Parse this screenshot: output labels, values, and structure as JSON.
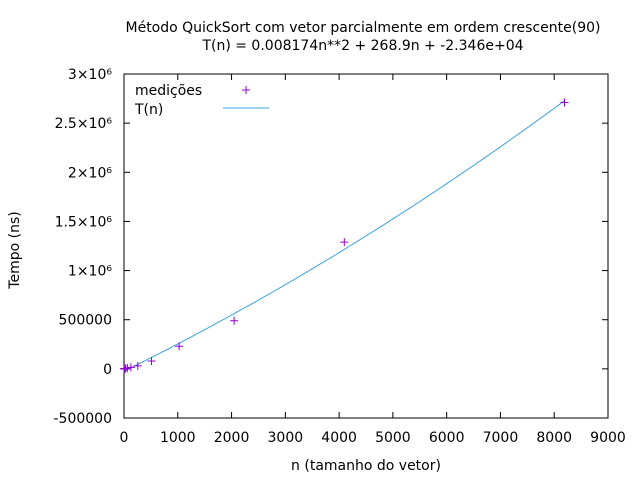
{
  "chart_data": {
    "type": "scatter",
    "title": "Método QuickSort com vetor parcialmente em ordem crescente(90)",
    "subtitle": "T(n) = 0.008174n**2 + 268.9n + -2.346e+04",
    "xlabel": "n (tamanho do vetor)",
    "ylabel": "Tempo (ns)",
    "xlim": [
      0,
      9000
    ],
    "ylim": [
      -500000,
      3000000
    ],
    "x_ticks": [
      "0",
      "1000",
      "2000",
      "3000",
      "4000",
      "5000",
      "6000",
      "7000",
      "8000",
      "9000"
    ],
    "y_ticks": [
      "-500000",
      "0",
      "500000",
      "1×10⁶",
      "1.5×10⁶",
      "2×10⁶",
      "2.5×10⁶",
      "3×10⁶"
    ],
    "grid": false,
    "legend_position": "top-left",
    "series": [
      {
        "name": "medições",
        "kind": "points",
        "marker": "+",
        "color": "#9400d3",
        "x": [
          2,
          4,
          8,
          16,
          32,
          64,
          128,
          256,
          512,
          1024,
          2048,
          4096,
          8192
        ],
        "y": [
          500,
          800,
          1500,
          3000,
          5000,
          8000,
          15000,
          30000,
          80000,
          230000,
          490000,
          1290000,
          2710000
        ]
      },
      {
        "name": "T(n)",
        "kind": "fit_line",
        "color": "#3ba3e6",
        "coefficients": {
          "a": 0.008174,
          "b": 268.9,
          "c": -23460
        },
        "x_range": [
          0,
          8192
        ]
      }
    ]
  }
}
